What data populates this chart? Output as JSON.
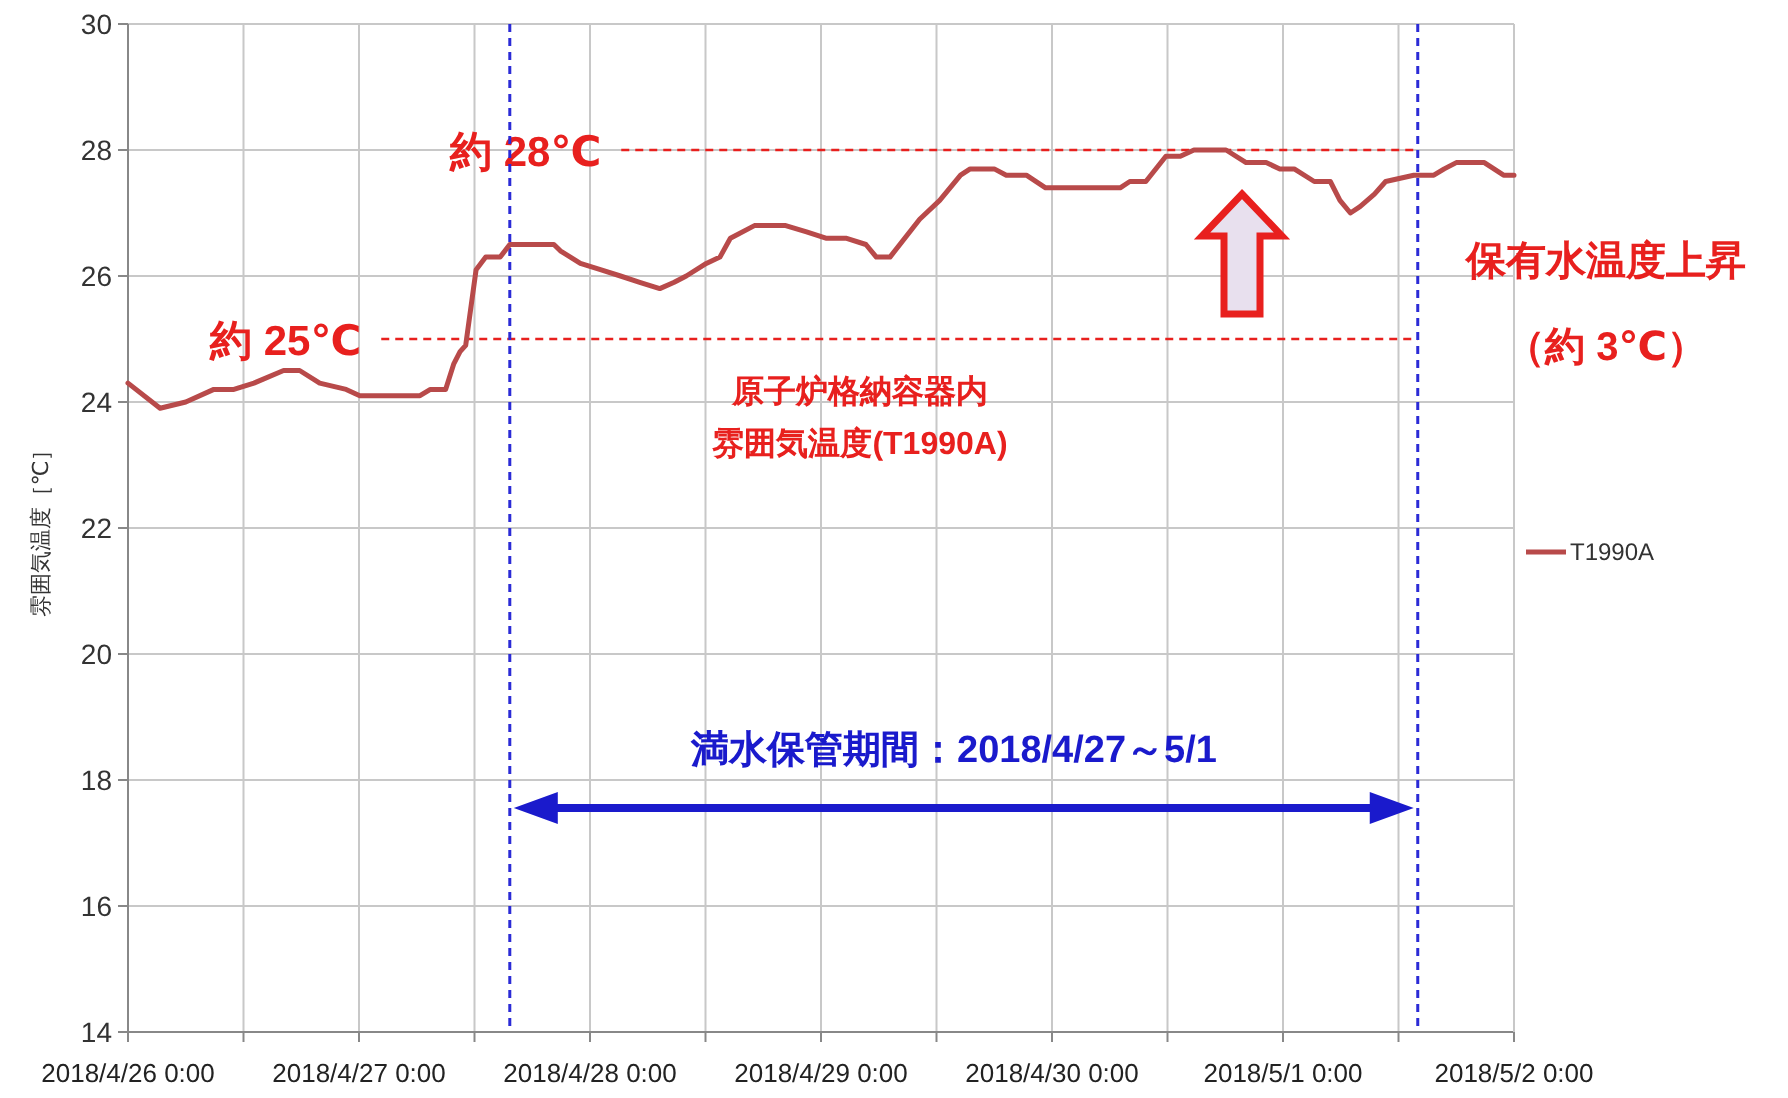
{
  "chart_data": {
    "type": "line",
    "ylabel": "雰囲気温度［℃］",
    "grid": true,
    "legend": "right",
    "marker": "none",
    "line_style": "solid",
    "xlim": [
      "2018-04-26T00:00",
      "2018-05-02T00:00"
    ],
    "xticks": [
      {
        "value": "2018-04-26T00:00",
        "label": "2018/4/26 0:00"
      },
      {
        "value": "2018-04-26T12:00",
        "label": null
      },
      {
        "value": "2018-04-27T00:00",
        "label": "2018/4/27 0:00"
      },
      {
        "value": "2018-04-27T12:00",
        "label": null
      },
      {
        "value": "2018-04-28T00:00",
        "label": "2018/4/28 0:00"
      },
      {
        "value": "2018-04-28T12:00",
        "label": null
      },
      {
        "value": "2018-04-29T00:00",
        "label": "2018/4/29 0:00"
      },
      {
        "value": "2018-04-29T12:00",
        "label": null
      },
      {
        "value": "2018-04-30T00:00",
        "label": "2018/4/30 0:00"
      },
      {
        "value": "2018-04-30T12:00",
        "label": null
      },
      {
        "value": "2018-05-01T00:00",
        "label": "2018/5/1 0:00"
      },
      {
        "value": "2018-05-01T12:00",
        "label": null
      },
      {
        "value": "2018-05-02T00:00",
        "label": "2018/5/2 0:00"
      }
    ],
    "ylim": [
      14,
      30
    ],
    "yticks": [
      14,
      16,
      18,
      20,
      22,
      24,
      26,
      28,
      30
    ],
    "series": [
      {
        "name": "T1990A",
        "color": "#b84a4a",
        "x": [
          "2018-04-26T00:00",
          "2018-04-26T03:20",
          "2018-04-26T06:00",
          "2018-04-26T08:55",
          "2018-04-26T11:00",
          "2018-04-26T13:05",
          "2018-04-26T16:10",
          "2018-04-26T17:50",
          "2018-04-26T19:55",
          "2018-04-26T22:40",
          "2018-04-27T00:05",
          "2018-04-27T06:20",
          "2018-04-27T07:25",
          "2018-04-27T09:00",
          "2018-04-27T09:50",
          "2018-04-27T10:30",
          "2018-04-27T11:05",
          "2018-04-27T12:10",
          "2018-04-27T13:10",
          "2018-04-27T14:40",
          "2018-04-27T15:40",
          "2018-04-27T20:15",
          "2018-04-27T20:55",
          "2018-04-27T23:00",
          "2018-04-28T01:05",
          "2018-04-28T03:10",
          "2018-04-28T05:10",
          "2018-04-28T07:15",
          "2018-04-28T08:45",
          "2018-04-28T10:00",
          "2018-04-28T12:05",
          "2018-04-28T13:30",
          "2018-04-28T14:35",
          "2018-04-28T17:05",
          "2018-04-28T20:20",
          "2018-04-28T22:30",
          "2018-04-29T00:30",
          "2018-04-29T02:35",
          "2018-04-29T04:40",
          "2018-04-29T05:45",
          "2018-04-29T07:10",
          "2018-04-29T10:15",
          "2018-04-29T12:20",
          "2018-04-29T14:30",
          "2018-04-29T15:30",
          "2018-04-29T18:00",
          "2018-04-29T19:15",
          "2018-04-29T21:20",
          "2018-04-29T23:20",
          "2018-04-30T07:05",
          "2018-04-30T08:05",
          "2018-04-30T09:45",
          "2018-04-30T11:50",
          "2018-04-30T13:20",
          "2018-04-30T14:45",
          "2018-04-30T18:05",
          "2018-04-30T20:10",
          "2018-04-30T22:15",
          "2018-04-30T23:40",
          "2018-05-01T01:10",
          "2018-05-01T03:15",
          "2018-05-01T04:55",
          "2018-05-01T05:55",
          "2018-05-01T07:00",
          "2018-05-01T08:00",
          "2018-05-01T09:30",
          "2018-05-01T10:40",
          "2018-05-01T13:35",
          "2018-05-01T15:40",
          "2018-05-01T16:45",
          "2018-05-01T18:00",
          "2018-05-01T20:55",
          "2018-05-01T22:55",
          "2018-05-02T00:00"
        ],
        "values": [
          24.3,
          23.9,
          24.0,
          24.2,
          24.2,
          24.3,
          24.5,
          24.5,
          24.3,
          24.2,
          24.1,
          24.1,
          24.2,
          24.2,
          24.6,
          24.8,
          24.9,
          26.1,
          26.3,
          26.3,
          26.5,
          26.5,
          26.4,
          26.2,
          26.1,
          26.0,
          25.9,
          25.8,
          25.9,
          26.0,
          26.2,
          26.3,
          26.6,
          26.8,
          26.8,
          26.7,
          26.6,
          26.6,
          26.5,
          26.3,
          26.3,
          26.9,
          27.2,
          27.6,
          27.7,
          27.7,
          27.6,
          27.6,
          27.4,
          27.4,
          27.5,
          27.5,
          27.9,
          27.9,
          28.0,
          28.0,
          27.8,
          27.8,
          27.7,
          27.7,
          27.5,
          27.5,
          27.2,
          27.0,
          27.1,
          27.3,
          27.5,
          27.6,
          27.6,
          27.7,
          27.8,
          27.8,
          27.6,
          27.6
        ]
      }
    ],
    "ref_lines": [
      {
        "axis": "y",
        "value": 25,
        "label": "約 25℃",
        "color": "#e8201e",
        "line_style": "dashed"
      },
      {
        "axis": "y",
        "value": 28,
        "label": "約 28℃",
        "color": "#e8201e",
        "line_style": "dashed"
      },
      {
        "axis": "x",
        "value": "2018-04-27T15:40",
        "color": "#2b2bd6",
        "line_style": "dashed"
      },
      {
        "axis": "x",
        "value": "2018-05-01T14:00",
        "color": "#2b2bd6",
        "line_style": "dashed"
      }
    ],
    "annotations": [
      "原子炉格納容器内",
      "雰囲気温度(T1990A)",
      "満水保管期間：2018/4/27～5/1",
      "保有水温度上昇",
      "（約 3℃）"
    ]
  }
}
